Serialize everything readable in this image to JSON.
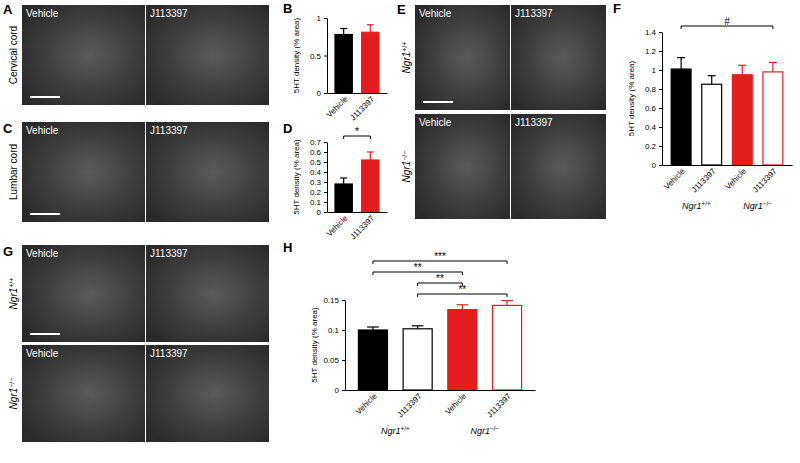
{
  "image_panels": [
    {
      "panel": "A",
      "row_labels": [
        "Cervical cord"
      ],
      "column_labels": [
        "Vehicle",
        "J113397"
      ]
    },
    {
      "panel": "C",
      "row_labels": [
        "Lumbar cord"
      ],
      "column_labels": [
        "Vehicle",
        "J113397"
      ]
    },
    {
      "panel": "E",
      "row_labels": [
        "Ngr1+/+",
        "Ngr1−/−"
      ],
      "column_labels": [
        "Vehicle",
        "J113397"
      ]
    },
    {
      "panel": "G",
      "row_labels": [
        "Ngr1+/+",
        "Ngr1−/−"
      ],
      "column_labels": [
        "Vehicle",
        "J113397"
      ]
    }
  ],
  "chart_data": [
    {
      "type": "bar",
      "panel": "B",
      "categories": [
        "Vehicle",
        "J113397"
      ],
      "values": [
        0.78,
        0.81
      ],
      "errors": [
        0.08,
        0.1
      ],
      "colors": [
        "#000000",
        "#e41e1e"
      ],
      "y_label": "5HT density (% area)",
      "ylim": [
        0,
        1
      ],
      "yticks": [
        0,
        0.5,
        1
      ]
    },
    {
      "type": "bar",
      "panel": "D",
      "categories": [
        "Vehicle",
        "J113397"
      ],
      "values": [
        0.28,
        0.52
      ],
      "errors": [
        0.06,
        0.08
      ],
      "colors": [
        "#000000",
        "#e41e1e"
      ],
      "y_label": "5HT density (% area)",
      "ylim": [
        0,
        0.7
      ],
      "yticks": [
        0,
        0.1,
        0.2,
        0.3,
        0.4,
        0.5,
        0.6,
        0.7
      ],
      "annotations": [
        {
          "from": 0,
          "to": 1,
          "label": "*"
        }
      ]
    },
    {
      "type": "bar",
      "panel": "F",
      "categories": [
        "Vehicle",
        "J113397",
        "Vehicle",
        "J113397"
      ],
      "values": [
        1.01,
        0.85,
        0.95,
        0.98
      ],
      "errors": [
        0.12,
        0.09,
        0.1,
        0.1
      ],
      "colors": [
        "#000000",
        "#ffffff",
        "#e41e1e",
        "#ffffff"
      ],
      "groups": [
        {
          "label": "Ngr1+/+",
          "from": 0,
          "to": 1
        },
        {
          "label": "Ngr1−/−",
          "from": 2,
          "to": 3
        }
      ],
      "y_label": "5HT density (% area)",
      "ylim": [
        0,
        1.4
      ],
      "yticks": [
        0,
        0.2,
        0.4,
        0.6,
        0.8,
        1,
        1.2,
        1.4
      ],
      "annotations": [
        {
          "from": 0,
          "to": 3,
          "label": "#"
        }
      ]
    },
    {
      "type": "bar",
      "panel": "H",
      "categories": [
        "Vehicle",
        "J113397",
        "Vehicle",
        "J113397"
      ],
      "values": [
        0.1,
        0.102,
        0.134,
        0.141
      ],
      "errors": [
        0.005,
        0.005,
        0.008,
        0.008
      ],
      "colors": [
        "#000000",
        "#ffffff",
        "#e41e1e",
        "#ffffff"
      ],
      "groups": [
        {
          "label": "Ngr1+/+",
          "from": 0,
          "to": 1
        },
        {
          "label": "Ngr1−/−",
          "from": 2,
          "to": 3
        }
      ],
      "y_label": "5HT density (% area)",
      "ylim": [
        0,
        0.15
      ],
      "yticks": [
        0,
        0.05,
        0.1,
        0.15
      ],
      "annotations": [
        {
          "from": 0,
          "to": 3,
          "label": "***"
        },
        {
          "from": 0,
          "to": 2,
          "label": "**"
        },
        {
          "from": 1,
          "to": 2,
          "label": "**"
        },
        {
          "from": 1,
          "to": 3,
          "label": "**"
        }
      ]
    }
  ]
}
